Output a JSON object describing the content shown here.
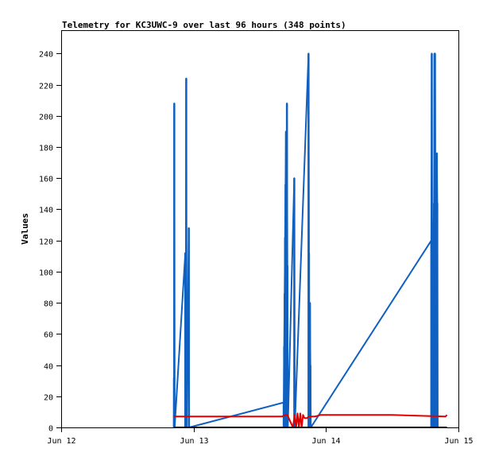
{
  "chart_data": {
    "type": "line",
    "title": "Telemetry for KC3UWC-9 over last 96 hours (348 points)",
    "xlabel": "",
    "ylabel": "Values",
    "x_ticks": [
      "Jun 12",
      "Jun 13",
      "Jun 14",
      "Jun 15"
    ],
    "x_domain_days": [
      12,
      15
    ],
    "ylim": [
      0,
      255
    ],
    "y_ticks": [
      0,
      20,
      40,
      60,
      80,
      100,
      120,
      140,
      160,
      180,
      200,
      220,
      240
    ],
    "grid": false,
    "legend": "none",
    "series": [
      {
        "color": "#1060c0",
        "style": "spikes",
        "points": [
          [
            "Jun 12 20:25",
            0
          ],
          [
            "Jun 12 20:27",
            32
          ],
          [
            "Jun 12 20:28",
            0
          ],
          [
            "Jun 12 20:30",
            208
          ],
          [
            "Jun 12 20:34",
            0
          ],
          [
            "Jun 12 22:30",
            112
          ],
          [
            "Jun 12 22:34",
            0
          ],
          [
            "Jun 12 22:40",
            224
          ],
          [
            "Jun 12 22:44",
            0
          ],
          [
            "Jun 12 23:08",
            128
          ],
          [
            "Jun 12 23:12",
            0
          ],
          [
            "Jun 13 16:20",
            16
          ],
          [
            "Jun 13 16:25",
            52
          ],
          [
            "Jun 13 16:30",
            86
          ],
          [
            "Jun 13 16:35",
            122
          ],
          [
            "Jun 13 16:40",
            156
          ],
          [
            "Jun 13 16:45",
            190
          ],
          [
            "Jun 13 16:50",
            140
          ],
          [
            "Jun 13 16:55",
            208
          ],
          [
            "Jun 13 17:00",
            104
          ],
          [
            "Jun 13 17:05",
            0
          ],
          [
            "Jun 13 18:15",
            160
          ],
          [
            "Jun 13 18:20",
            0
          ],
          [
            "Jun 13 20:50",
            240
          ],
          [
            "Jun 13 20:55",
            112
          ],
          [
            "Jun 13 21:00",
            0
          ],
          [
            "Jun 13 21:05",
            80
          ],
          [
            "Jun 13 21:10",
            40
          ],
          [
            "Jun 13 21:15",
            0
          ],
          [
            "Jun 14 19:05",
            120
          ],
          [
            "Jun 14 19:10",
            240
          ],
          [
            "Jun 14 19:15",
            80
          ],
          [
            "Jun 14 19:20",
            0
          ],
          [
            "Jun 14 19:25",
            80
          ],
          [
            "Jun 14 19:30",
            128
          ],
          [
            "Jun 14 19:35",
            144
          ],
          [
            "Jun 14 19:40",
            240
          ],
          [
            "Jun 14 19:45",
            240
          ],
          [
            "Jun 14 19:50",
            104
          ],
          [
            "Jun 14 19:55",
            0
          ],
          [
            "Jun 14 20:00",
            128
          ],
          [
            "Jun 14 20:05",
            176
          ],
          [
            "Jun 14 20:10",
            144
          ],
          [
            "Jun 14 20:15",
            0
          ],
          [
            "Jun 14 21:55",
            0
          ]
        ]
      },
      {
        "color": "#e00000",
        "style": "line",
        "points": [
          [
            "Jun 12 20:25",
            7
          ],
          [
            "Jun 13 00:00",
            7
          ],
          [
            "Jun 13 12:00",
            7
          ],
          [
            "Jun 13 16:00",
            7
          ],
          [
            "Jun 13 16:40",
            8
          ],
          [
            "Jun 13 17:00",
            8
          ],
          [
            "Jun 13 17:30",
            4
          ],
          [
            "Jun 13 18:00",
            0
          ],
          [
            "Jun 13 18:20",
            8
          ],
          [
            "Jun 13 18:35",
            0
          ],
          [
            "Jun 13 18:50",
            9
          ],
          [
            "Jun 13 19:05",
            0
          ],
          [
            "Jun 13 19:20",
            9
          ],
          [
            "Jun 13 19:35",
            0
          ],
          [
            "Jun 13 19:50",
            8
          ],
          [
            "Jun 13 20:05",
            6
          ],
          [
            "Jun 13 20:30",
            6
          ],
          [
            "Jun 13 21:00",
            7
          ],
          [
            "Jun 13 22:00",
            7
          ],
          [
            "Jun 13 23:00",
            8
          ],
          [
            "Jun 14 00:00",
            8
          ],
          [
            "Jun 14 12:00",
            8
          ],
          [
            "Jun 14 21:40",
            7
          ],
          [
            "Jun 14 21:55",
            8
          ]
        ]
      },
      {
        "color": "#000000",
        "style": "line",
        "points": [
          [
            "Jun 12 20:25",
            0
          ],
          [
            "Jun 14 21:55",
            0
          ]
        ]
      }
    ]
  }
}
